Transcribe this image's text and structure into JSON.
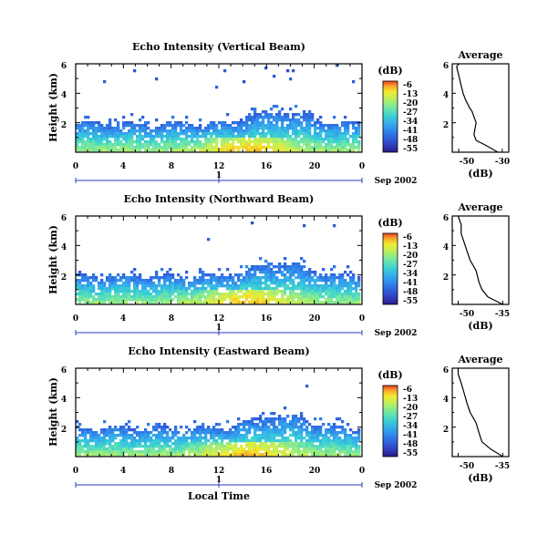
{
  "colors": {
    "colormap": [
      "#2a1a86",
      "#3344c8",
      "#2f73e6",
      "#34a4ee",
      "#38cfd6",
      "#6fe6a6",
      "#b8ef62",
      "#f2ea2e",
      "#f7a62a",
      "#ee3b22"
    ],
    "axes": "#000000",
    "time_axis": "#2a3bbd"
  },
  "common": {
    "height_label": "Height (km)",
    "y_ticks": [
      "2",
      "4",
      "6"
    ],
    "x_ticks": [
      "0",
      "4",
      "8",
      "12",
      "16",
      "20",
      "0"
    ],
    "date_label": "Sep 2002",
    "day_tick": "1",
    "db_unit": "(dB)",
    "avg_xlabel": "(dB)",
    "avg_title": "Average",
    "avg_y_ticks": [
      "2",
      "4",
      "6"
    ],
    "local_time": "Local Time"
  },
  "chart_data": [
    {
      "type": "heatmap",
      "title": "Echo Intensity (Vertical Beam)",
      "ylabel": "Height (km)",
      "xlabel": "Local Time",
      "x_ticks": [
        "0",
        "4",
        "8",
        "12",
        "16",
        "20",
        "0"
      ],
      "ylim": [
        0,
        6
      ],
      "colorbar": {
        "label": "(dB)",
        "ticks": [
          "-6",
          "-13",
          "-20",
          "-27",
          "-34",
          "-41",
          "-48",
          "-55"
        ]
      },
      "average_profile": {
        "title": "Average",
        "xlabel": "(dB)",
        "x_ticks": [
          "-50",
          "-30"
        ],
        "xlim": [
          -53,
          -27
        ],
        "points": [
          [
            -32,
            0.0
          ],
          [
            -38,
            0.5
          ],
          [
            -42,
            0.8
          ],
          [
            -43,
            1.2
          ],
          [
            -42,
            2.0
          ],
          [
            -44,
            2.8
          ],
          [
            -45,
            3.0
          ],
          [
            -47,
            3.6
          ],
          [
            -48,
            4.0
          ],
          [
            -49,
            4.6
          ],
          [
            -50,
            5.2
          ],
          [
            -51,
            5.8
          ],
          [
            -50,
            6.0
          ]
        ]
      }
    },
    {
      "type": "heatmap",
      "title": "Echo Intensity (Northward Beam)",
      "ylabel": "Height (km)",
      "xlabel": "Local Time",
      "x_ticks": [
        "0",
        "4",
        "8",
        "12",
        "16",
        "20",
        "0"
      ],
      "ylim": [
        0,
        6
      ],
      "colorbar": {
        "label": "(dB)",
        "ticks": [
          "-6",
          "-13",
          "-20",
          "-27",
          "-34",
          "-41",
          "-48",
          "-55"
        ]
      },
      "average_profile": {
        "title": "Average",
        "xlabel": "(dB)",
        "x_ticks": [
          "-50",
          "-35"
        ],
        "xlim": [
          -52,
          -33
        ],
        "points": [
          [
            -35,
            0.0
          ],
          [
            -40,
            0.5
          ],
          [
            -42,
            1.0
          ],
          [
            -43,
            1.5
          ],
          [
            -44,
            2.3
          ],
          [
            -46,
            3.0
          ],
          [
            -47,
            3.6
          ],
          [
            -48,
            4.2
          ],
          [
            -49,
            4.8
          ],
          [
            -49,
            5.4
          ],
          [
            -50,
            6.0
          ]
        ]
      }
    },
    {
      "type": "heatmap",
      "title": "Echo Intensity (Eastward Beam)",
      "ylabel": "Height (km)",
      "xlabel": "Local Time",
      "x_ticks": [
        "0",
        "4",
        "8",
        "12",
        "16",
        "20",
        "0"
      ],
      "ylim": [
        0,
        6
      ],
      "colorbar": {
        "label": "(dB)",
        "ticks": [
          "-6",
          "-13",
          "-20",
          "-27",
          "-34",
          "-41",
          "-48",
          "-55"
        ]
      },
      "average_profile": {
        "title": "Average",
        "xlabel": "(dB)",
        "x_ticks": [
          "-50",
          "-35"
        ],
        "xlim": [
          -52,
          -33
        ],
        "points": [
          [
            -35,
            0.0
          ],
          [
            -39,
            0.5
          ],
          [
            -42,
            1.0
          ],
          [
            -43,
            1.6
          ],
          [
            -44,
            2.3
          ],
          [
            -46,
            3.0
          ],
          [
            -47,
            3.6
          ],
          [
            -48,
            4.3
          ],
          [
            -49,
            5.0
          ],
          [
            -50,
            5.6
          ],
          [
            -50,
            6.0
          ]
        ]
      }
    }
  ]
}
